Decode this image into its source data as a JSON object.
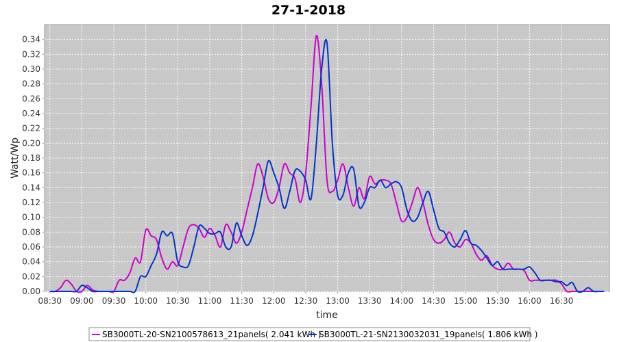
{
  "chart_data": {
    "type": "line",
    "title": "27-1-2018",
    "xlabel": "time",
    "ylabel": "Watt/Wp",
    "xlim": [
      "08:25",
      "17:15"
    ],
    "ylim": [
      0,
      0.36
    ],
    "x_ticks": [
      "08:30",
      "09:00",
      "09:30",
      "10:00",
      "10:30",
      "11:00",
      "11:30",
      "12:00",
      "12:30",
      "13:00",
      "13:30",
      "14:00",
      "14:30",
      "15:00",
      "15:30",
      "16:00",
      "16:30"
    ],
    "y_ticks": [
      "0.00",
      "0.02",
      "0.04",
      "0.06",
      "0.08",
      "0.10",
      "0.12",
      "0.14",
      "0.16",
      "0.18",
      "0.20",
      "0.22",
      "0.24",
      "0.26",
      "0.28",
      "0.30",
      "0.32",
      "0.34"
    ],
    "grid": true,
    "legend_position": "bottom",
    "x": [
      "08:30",
      "08:35",
      "08:40",
      "08:45",
      "08:50",
      "08:55",
      "09:00",
      "09:05",
      "09:10",
      "09:15",
      "09:20",
      "09:25",
      "09:30",
      "09:35",
      "09:40",
      "09:45",
      "09:50",
      "09:55",
      "10:00",
      "10:05",
      "10:10",
      "10:15",
      "10:20",
      "10:25",
      "10:30",
      "10:35",
      "10:40",
      "10:45",
      "10:50",
      "10:55",
      "11:00",
      "11:05",
      "11:10",
      "11:15",
      "11:20",
      "11:25",
      "11:30",
      "11:35",
      "11:40",
      "11:45",
      "11:50",
      "11:55",
      "12:00",
      "12:05",
      "12:10",
      "12:15",
      "12:20",
      "12:25",
      "12:30",
      "12:35",
      "12:40",
      "12:45",
      "12:50",
      "12:55",
      "13:00",
      "13:05",
      "13:10",
      "13:15",
      "13:20",
      "13:25",
      "13:30",
      "13:35",
      "13:40",
      "13:45",
      "13:50",
      "13:55",
      "14:00",
      "14:05",
      "14:10",
      "14:15",
      "14:20",
      "14:25",
      "14:30",
      "14:35",
      "14:40",
      "14:45",
      "14:50",
      "14:55",
      "15:00",
      "15:05",
      "15:10",
      "15:15",
      "15:20",
      "15:25",
      "15:30",
      "15:35",
      "15:40",
      "15:45",
      "15:50",
      "15:55",
      "16:00",
      "16:05",
      "16:10",
      "16:15",
      "16:20",
      "16:25",
      "16:30",
      "16:35",
      "16:40",
      "16:45",
      "16:50",
      "16:55",
      "17:00",
      "17:05",
      "17:10"
    ],
    "series": [
      {
        "name": "SB3000TL-20-SN2100578613_21panels( 2.041 kWh )",
        "color": "#cc00cc",
        "values": [
          0.0,
          0.0,
          0.005,
          0.015,
          0.01,
          0.0,
          0.0,
          0.008,
          0.002,
          0.0,
          0.0,
          0.0,
          0.0,
          0.015,
          0.015,
          0.025,
          0.045,
          0.04,
          0.083,
          0.075,
          0.07,
          0.045,
          0.03,
          0.04,
          0.035,
          0.06,
          0.085,
          0.09,
          0.085,
          0.073,
          0.085,
          0.075,
          0.06,
          0.09,
          0.08,
          0.065,
          0.08,
          0.11,
          0.14,
          0.172,
          0.155,
          0.125,
          0.12,
          0.14,
          0.172,
          0.16,
          0.152,
          0.12,
          0.16,
          0.25,
          0.345,
          0.28,
          0.15,
          0.135,
          0.15,
          0.172,
          0.14,
          0.115,
          0.14,
          0.125,
          0.155,
          0.145,
          0.15,
          0.15,
          0.145,
          0.12,
          0.095,
          0.1,
          0.12,
          0.14,
          0.12,
          0.09,
          0.07,
          0.065,
          0.07,
          0.08,
          0.065,
          0.06,
          0.07,
          0.065,
          0.05,
          0.042,
          0.048,
          0.035,
          0.03,
          0.03,
          0.038,
          0.03,
          0.03,
          0.028,
          0.015,
          0.015,
          0.015,
          0.015,
          0.015,
          0.015,
          0.01,
          0.0,
          0.0,
          0.0,
          0.0,
          0.0,
          0.0,
          0.0,
          0.0
        ]
      },
      {
        "name": "SB3000TL-21-SN2130032031_19panels( 1.806 kWh )",
        "color": "#0033cc",
        "values": [
          0.0,
          0.0,
          0.0,
          0.0,
          0.0,
          0.0,
          0.008,
          0.005,
          0.0,
          0.0,
          0.0,
          0.0,
          0.0,
          0.0,
          0.0,
          0.0,
          0.0,
          0.02,
          0.02,
          0.035,
          0.05,
          0.08,
          0.075,
          0.078,
          0.04,
          0.033,
          0.035,
          0.06,
          0.088,
          0.085,
          0.078,
          0.078,
          0.08,
          0.06,
          0.06,
          0.092,
          0.075,
          0.062,
          0.075,
          0.105,
          0.14,
          0.176,
          0.16,
          0.14,
          0.112,
          0.135,
          0.163,
          0.162,
          0.15,
          0.125,
          0.2,
          0.3,
          0.335,
          0.2,
          0.13,
          0.13,
          0.16,
          0.165,
          0.115,
          0.12,
          0.14,
          0.14,
          0.15,
          0.14,
          0.145,
          0.148,
          0.14,
          0.11,
          0.095,
          0.1,
          0.12,
          0.135,
          0.11,
          0.085,
          0.08,
          0.065,
          0.06,
          0.07,
          0.082,
          0.065,
          0.062,
          0.055,
          0.045,
          0.035,
          0.04,
          0.03,
          0.03,
          0.03,
          0.03,
          0.03,
          0.033,
          0.025,
          0.015,
          0.015,
          0.015,
          0.013,
          0.013,
          0.008,
          0.012,
          0.0,
          0.0,
          0.005,
          0.0,
          0.0,
          0.0
        ]
      }
    ]
  }
}
